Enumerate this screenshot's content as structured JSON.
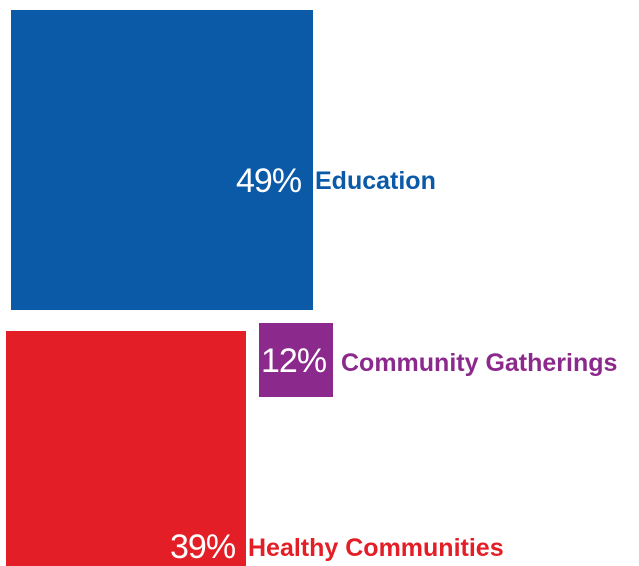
{
  "chart_data": {
    "type": "treemap-squares",
    "title": "",
    "items": [
      {
        "label": "Education",
        "value": 49,
        "value_label": "49%",
        "color": "#0b5aa8"
      },
      {
        "label": "Community Gatherings",
        "value": 12,
        "value_label": "12%",
        "color": "#8b2a8c"
      },
      {
        "label": "Healthy Communities",
        "value": 39,
        "value_label": "39%",
        "color": "#e31e26"
      }
    ]
  }
}
